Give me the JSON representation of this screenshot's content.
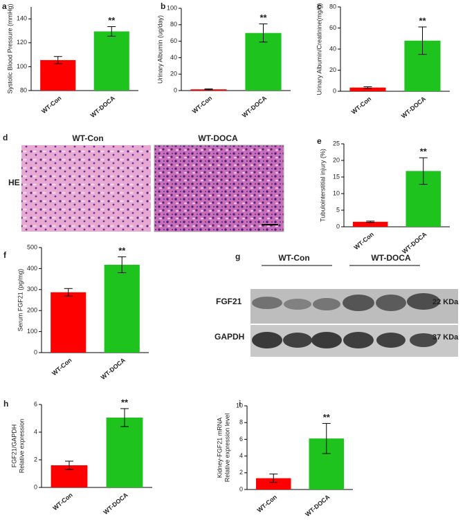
{
  "chart_data": [
    {
      "panel": "a",
      "type": "bar",
      "ylabel": [
        "Systolic Blood Pressure (mmHg)"
      ],
      "categories": [
        "WT-Con",
        "WT-DOCA"
      ],
      "values": [
        105.5,
        129.5
      ],
      "errors": [
        3,
        4
      ],
      "colors": [
        "#ff0000",
        "#1ec31e"
      ],
      "ylim": [
        80,
        150
      ],
      "yticks": [
        80,
        100,
        120,
        140
      ],
      "annotations": [
        {
          "text": "**",
          "category": "WT-DOCA"
        }
      ]
    },
    {
      "panel": "b",
      "type": "bar",
      "ylabel": [
        "Urinary Albumin (ug/day)"
      ],
      "categories": [
        "WT-Con",
        "WT-DOCA"
      ],
      "values": [
        1.5,
        70
      ],
      "errors": [
        0.5,
        11
      ],
      "colors": [
        "#ff0000",
        "#1ec31e"
      ],
      "ylim": [
        0,
        100
      ],
      "yticks": [
        0,
        20,
        40,
        60,
        80,
        100
      ],
      "annotations": [
        {
          "text": "**",
          "category": "WT-DOCA"
        }
      ]
    },
    {
      "panel": "c",
      "type": "bar",
      "ylabel": [
        "Urinary Albumin/Creatinine(mg/g)"
      ],
      "categories": [
        "WT-Con",
        "WT-DOCA"
      ],
      "values": [
        3.5,
        48
      ],
      "errors": [
        0.8,
        13
      ],
      "colors": [
        "#ff0000",
        "#1ec31e"
      ],
      "ylim": [
        0,
        80
      ],
      "yticks": [
        0,
        20,
        40,
        60,
        80
      ],
      "annotations": [
        {
          "text": "**",
          "category": "WT-DOCA"
        }
      ]
    },
    {
      "panel": "e",
      "type": "bar",
      "ylabel": [
        "Tubulointerstitial injury (%)"
      ],
      "categories": [
        "WT-Con",
        "WT-DOCA"
      ],
      "values": [
        1.5,
        16.8
      ],
      "errors": [
        0.2,
        4
      ],
      "colors": [
        "#ff0000",
        "#1ec31e"
      ],
      "ylim": [
        0,
        25
      ],
      "yticks": [
        0,
        5,
        10,
        15,
        20,
        25
      ],
      "annotations": [
        {
          "text": "**",
          "category": "WT-DOCA"
        }
      ]
    },
    {
      "panel": "f",
      "type": "bar",
      "ylabel": [
        "Serum FGF21 (pg/mg)"
      ],
      "categories": [
        "WT-Con",
        "WT-DOCA"
      ],
      "values": [
        287,
        418
      ],
      "errors": [
        18,
        38
      ],
      "colors": [
        "#ff0000",
        "#1ec31e"
      ],
      "ylim": [
        0,
        500
      ],
      "yticks": [
        0,
        100,
        200,
        300,
        400,
        500
      ],
      "annotations": [
        {
          "text": "**",
          "category": "WT-DOCA"
        }
      ]
    },
    {
      "panel": "h",
      "type": "bar",
      "ylabel": [
        "FGF21/GAPDH",
        "Relative expression"
      ],
      "categories": [
        "WT-Con",
        "WT-DOCA"
      ],
      "values": [
        1.6,
        5.05
      ],
      "errors": [
        0.3,
        0.65
      ],
      "colors": [
        "#ff0000",
        "#1ec31e"
      ],
      "ylim": [
        0,
        6
      ],
      "yticks": [
        0,
        2,
        4,
        6
      ],
      "annotations": [
        {
          "text": "**",
          "category": "WT-DOCA"
        }
      ]
    },
    {
      "panel": "i",
      "type": "bar",
      "ylabel": [
        "Kidney-FGF21 mRNA",
        "Relative expression level"
      ],
      "categories": [
        "WT-Con",
        "WT-DOCA"
      ],
      "values": [
        1.35,
        6.1
      ],
      "errors": [
        0.5,
        1.8
      ],
      "colors": [
        "#ff0000",
        "#1ec31e"
      ],
      "ylim": [
        0,
        10
      ],
      "yticks": [
        0,
        2,
        4,
        6,
        8,
        10
      ],
      "annotations": [
        {
          "text": "**",
          "category": "WT-DOCA"
        }
      ]
    }
  ],
  "histology": {
    "panel": "d",
    "stain": "HE",
    "groups": [
      "WT-Con",
      "WT-DOCA"
    ]
  },
  "blot": {
    "panel": "g",
    "groups": [
      "WT-Con",
      "WT-DOCA"
    ],
    "rows": [
      {
        "protein": "FGF21",
        "size": "22 KDa"
      },
      {
        "protein": "GAPDH",
        "size": "37 KDa"
      }
    ]
  }
}
